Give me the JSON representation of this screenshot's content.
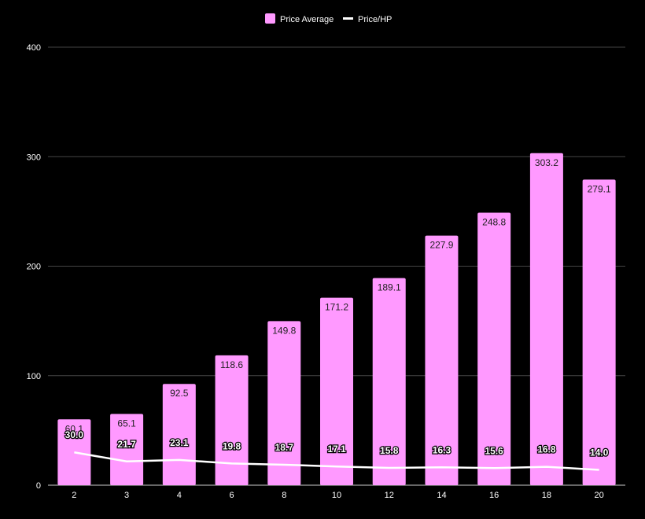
{
  "chart_data": {
    "type": "bar",
    "categories": [
      "2",
      "3",
      "4",
      "6",
      "8",
      "10",
      "12",
      "14",
      "16",
      "18",
      "20"
    ],
    "series": [
      {
        "name": "Price Average",
        "type": "bar",
        "color": "#ff99ff",
        "values": [
          60.1,
          65.1,
          92.5,
          118.6,
          149.8,
          171.2,
          189.1,
          227.9,
          248.8,
          303.2,
          279.1
        ],
        "labels": [
          "60.1",
          "65.1",
          "92.5",
          "118.6",
          "149.8",
          "171.2",
          "189.1",
          "227.9",
          "248.8",
          "303.2",
          "279.1"
        ]
      },
      {
        "name": "Price/HP",
        "type": "line",
        "color": "#ffffff",
        "values": [
          30.0,
          21.7,
          23.1,
          19.8,
          18.7,
          17.1,
          15.8,
          16.3,
          15.6,
          16.8,
          14.0
        ],
        "labels": [
          "30.0",
          "21.7",
          "23.1",
          "19.8",
          "18.7",
          "17.1",
          "15.8",
          "16.3",
          "15.6",
          "16.8",
          "14.0"
        ]
      }
    ],
    "ylim": [
      0,
      400
    ],
    "yticks": [
      "0",
      "100",
      "200",
      "300",
      "400"
    ],
    "ytick_values": [
      0,
      100,
      200,
      300,
      400
    ],
    "grid": true,
    "legend_position": "top-center",
    "background": "#000000"
  }
}
